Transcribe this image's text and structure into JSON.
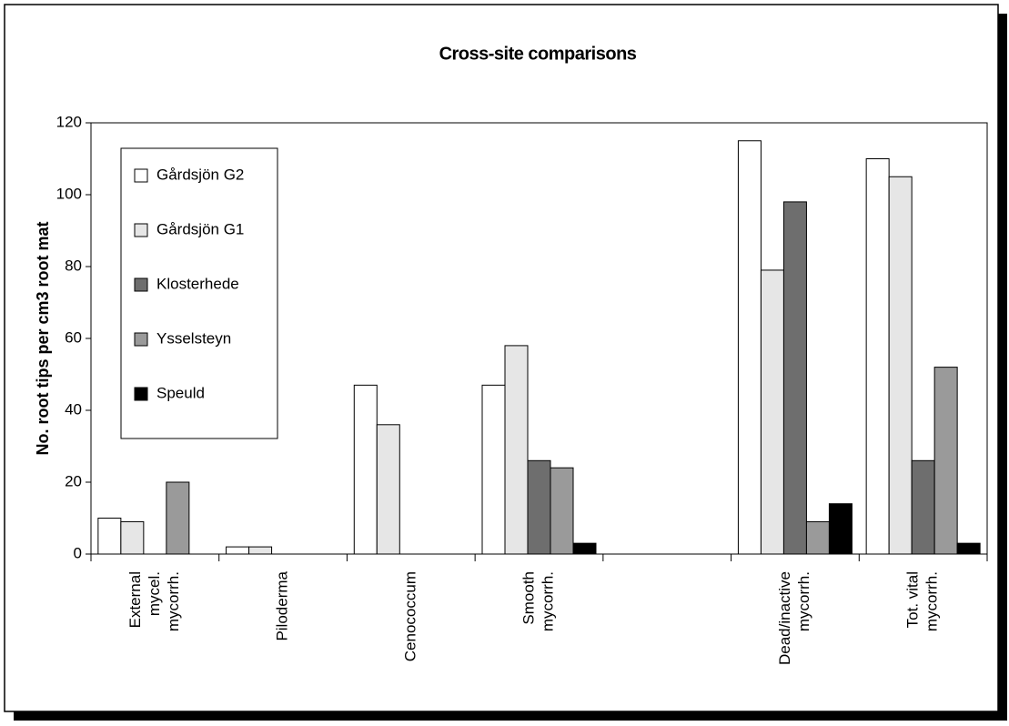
{
  "chart_data": {
    "type": "bar",
    "title": "Cross-site comparisons",
    "y_label": "No. root tips per cm3 root mat",
    "categories": [
      [
        "External",
        "mycel.",
        "mycorrh."
      ],
      [
        "Piloderma"
      ],
      [
        "Cenococcum"
      ],
      [
        "Smooth",
        "mycorrh."
      ],
      null,
      [
        "Dead/inactive",
        "mycorrh."
      ],
      [
        "Tot. vital",
        "mycorrh."
      ]
    ],
    "series": [
      {
        "name": "Gårdsjön G2",
        "color": "#ffffff",
        "values": [
          10,
          2,
          47,
          47,
          null,
          115,
          110
        ]
      },
      {
        "name": "Gårdsjön G1",
        "color": "#e6e6e6",
        "values": [
          9,
          2,
          36,
          58,
          null,
          79,
          105
        ]
      },
      {
        "name": "Klosterhede",
        "color": "#6e6e6e",
        "values": [
          null,
          null,
          null,
          26,
          null,
          98,
          26
        ]
      },
      {
        "name": "Ysselsteyn",
        "color": "#9a9a9a",
        "values": [
          20,
          null,
          null,
          24,
          null,
          9,
          52
        ]
      },
      {
        "name": "Speuld",
        "color": "#000000",
        "values": [
          null,
          null,
          null,
          3,
          null,
          14,
          3
        ]
      }
    ],
    "ylim": [
      0,
      120
    ],
    "yticks": [
      0,
      20,
      40,
      60,
      80,
      100,
      120
    ],
    "grid": false,
    "legend": "upper-left"
  }
}
